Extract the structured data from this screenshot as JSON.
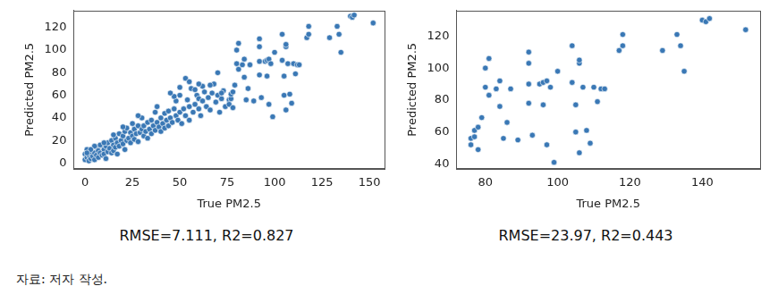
{
  "chart_data": [
    {
      "type": "scatter",
      "x_label": "True PM2.5",
      "y_label": "Predicted PM2.5",
      "caption": "RMSE=7.111, R2=0.827",
      "color": "#3a78b5",
      "marker": "circle",
      "grid": false,
      "xlim": [
        -6,
        158
      ],
      "xticks": [
        0,
        25,
        50,
        75,
        100,
        125,
        150
      ],
      "ylim": [
        -5,
        135
      ],
      "yticks": [
        0,
        20,
        40,
        60,
        80,
        100,
        120
      ],
      "x": [
        0,
        0,
        1,
        1,
        2,
        2,
        3,
        3,
        4,
        5,
        5,
        6,
        6,
        7,
        7,
        8,
        8,
        9,
        10,
        10,
        11,
        11,
        12,
        12,
        13,
        14,
        14,
        15,
        15,
        16,
        16,
        17,
        17,
        18,
        18,
        19,
        20,
        20,
        21,
        21,
        22,
        22,
        23,
        24,
        24,
        25,
        25,
        26,
        26,
        27,
        28,
        28,
        29,
        30,
        30,
        31,
        31,
        32,
        33,
        33,
        34,
        35,
        35,
        36,
        37,
        37,
        38,
        39,
        40,
        40,
        41,
        42,
        42,
        43,
        44,
        44,
        45,
        46,
        47,
        48,
        48,
        49,
        50,
        50,
        51,
        52,
        53,
        54,
        55,
        55,
        56,
        57,
        58,
        59,
        60,
        60,
        61,
        62,
        63,
        64,
        65,
        66,
        67,
        68,
        69,
        70,
        71,
        72,
        73,
        74,
        53,
        55,
        50,
        47,
        62,
        58,
        66,
        70,
        72,
        60,
        45,
        38,
        28,
        20,
        15,
        10,
        5,
        3,
        1,
        76,
        76,
        77,
        77,
        78,
        78,
        79,
        80,
        80,
        81,
        81,
        83,
        84,
        84,
        85,
        86,
        87,
        89,
        92,
        92,
        92,
        92,
        93,
        95,
        96,
        96,
        97,
        97,
        98,
        99,
        100,
        104,
        104,
        105,
        105,
        106,
        106,
        106,
        107,
        108,
        109,
        110,
        111,
        112,
        113,
        117,
        118,
        118,
        129,
        133,
        134,
        135,
        140,
        141,
        142,
        152
      ],
      "values": [
        3,
        8,
        5,
        12,
        2,
        7,
        4,
        10,
        6,
        3,
        9,
        14,
        7,
        5,
        11,
        9,
        16,
        7,
        12,
        8,
        15,
        4,
        10,
        18,
        13,
        9,
        20,
        16,
        11,
        22,
        14,
        18,
        8,
        15,
        26,
        20,
        17,
        24,
        12,
        28,
        20,
        31,
        22,
        18,
        27,
        24,
        35,
        21,
        30,
        26,
        19,
        33,
        27,
        30,
        40,
        24,
        33,
        28,
        36,
        22,
        30,
        38,
        26,
        33,
        29,
        45,
        36,
        32,
        40,
        28,
        35,
        44,
        31,
        38,
        46,
        33,
        40,
        36,
        48,
        42,
        55,
        38,
        45,
        60,
        35,
        48,
        42,
        56,
        50,
        38,
        66,
        45,
        52,
        60,
        48,
        57,
        42,
        55,
        63,
        50,
        58,
        47,
        62,
        70,
        54,
        60,
        45,
        57,
        64,
        50,
        75,
        72,
        67,
        59,
        68,
        65,
        69,
        80,
        62,
        70,
        62,
        50,
        42,
        32,
        25,
        18,
        15,
        12,
        9,
        56,
        52,
        57,
        61,
        63,
        49,
        69,
        88,
        100,
        83,
        106,
        87,
        92,
        76,
        56,
        66,
        87,
        55,
        110,
        90,
        103,
        78,
        58,
        90,
        91,
        77,
        92,
        52,
        88,
        41,
        98,
        114,
        91,
        77,
        60,
        47,
        103,
        105,
        88,
        61,
        53,
        88,
        79,
        87,
        87,
        111,
        114,
        121,
        111,
        121,
        114,
        98,
        130,
        129,
        131,
        124
      ]
    },
    {
      "type": "scatter",
      "x_label": "True PM2.5",
      "y_label": "Predicted PM2.5",
      "caption": "RMSE=23.97, R2=0.443",
      "color": "#3a78b5",
      "marker": "circle",
      "grid": false,
      "xlim": [
        72,
        156
      ],
      "xticks": [
        80,
        100,
        120,
        140
      ],
      "ylim": [
        37,
        136
      ],
      "yticks": [
        40,
        60,
        80,
        100,
        120
      ],
      "x": [
        76,
        76,
        77,
        77,
        78,
        78,
        79,
        80,
        80,
        81,
        81,
        83,
        84,
        84,
        85,
        86,
        87,
        89,
        92,
        92,
        92,
        92,
        93,
        95,
        96,
        96,
        97,
        97,
        98,
        99,
        100,
        104,
        104,
        105,
        105,
        106,
        106,
        106,
        107,
        108,
        109,
        110,
        111,
        112,
        113,
        117,
        118,
        118,
        129,
        133,
        134,
        135,
        140,
        141,
        142,
        152
      ],
      "values": [
        56,
        52,
        57,
        61,
        63,
        49,
        69,
        88,
        100,
        83,
        106,
        87,
        92,
        76,
        56,
        66,
        87,
        55,
        110,
        90,
        103,
        78,
        58,
        90,
        91,
        77,
        92,
        52,
        88,
        41,
        98,
        114,
        91,
        77,
        60,
        47,
        103,
        105,
        88,
        61,
        53,
        88,
        79,
        87,
        87,
        111,
        114,
        121,
        111,
        121,
        114,
        98,
        130,
        129,
        131,
        124
      ]
    }
  ],
  "source": "자료: 저자 작성."
}
